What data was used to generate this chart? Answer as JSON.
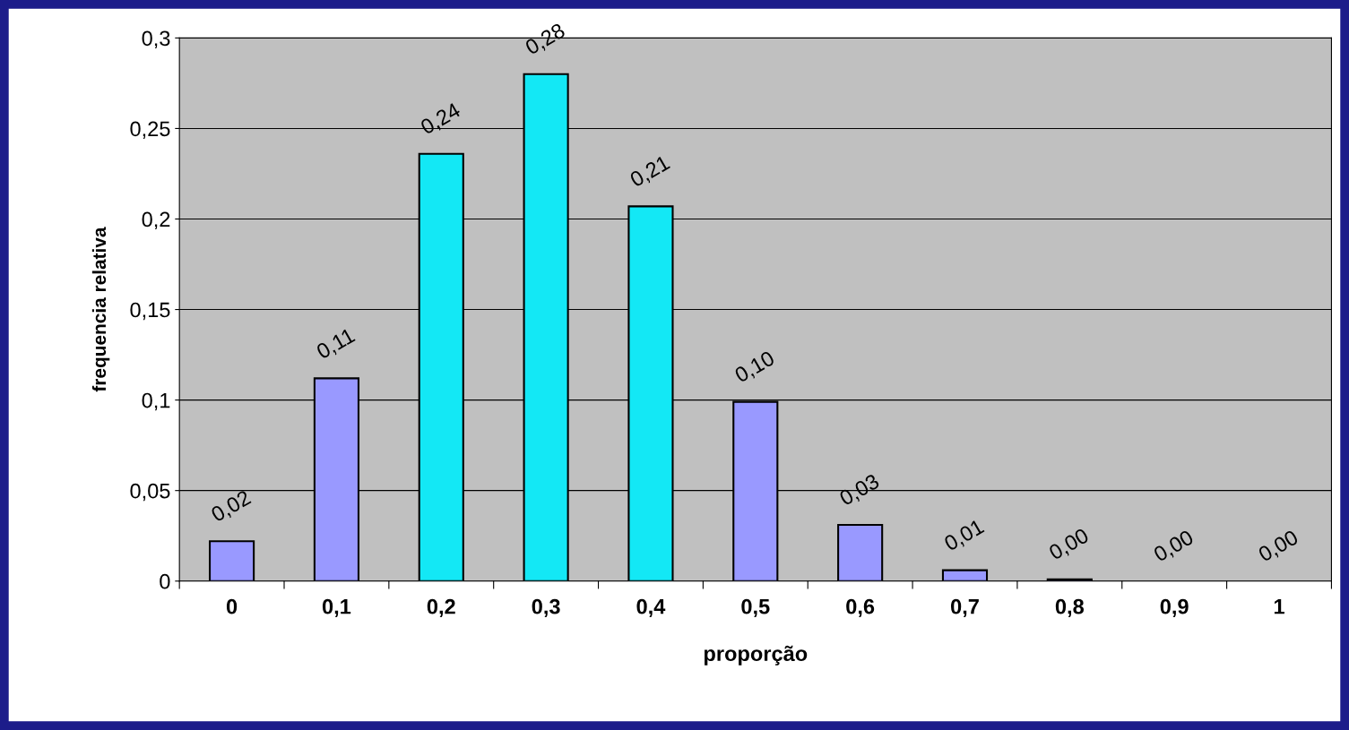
{
  "chart_data": {
    "type": "bar",
    "xlabel": "proporção",
    "ylabel": "frequencia relativa",
    "categories": [
      "0",
      "0,1",
      "0,2",
      "0,3",
      "0,4",
      "0,5",
      "0,6",
      "0,7",
      "0,8",
      "0,9",
      "1"
    ],
    "values": [
      0.022,
      0.112,
      0.236,
      0.28,
      0.207,
      0.099,
      0.031,
      0.006,
      0.001,
      0,
      0
    ],
    "colors": [
      "#9999ff",
      "#9999ff",
      "#13e8f5",
      "#13e8f5",
      "#13e8f5",
      "#9999ff",
      "#9999ff",
      "#9999ff",
      "#9999ff",
      "#9999ff",
      "#9999ff"
    ],
    "value_labels": [
      "0,02",
      "0,11",
      "0,24",
      "0,28",
      "0,21",
      "0,10",
      "0,03",
      "0,01",
      "0,00",
      "0,00",
      "0,00"
    ],
    "ylim": [
      0,
      0.3
    ],
    "yticks": [
      {
        "value": 0,
        "label": "0"
      },
      {
        "value": 0.05,
        "label": "0,05"
      },
      {
        "value": 0.1,
        "label": "0,1"
      },
      {
        "value": 0.15,
        "label": "0,15"
      },
      {
        "value": 0.2,
        "label": "0,2"
      },
      {
        "value": 0.25,
        "label": "0,25"
      },
      {
        "value": 0.3,
        "label": "0,3"
      }
    ],
    "grid": "y",
    "legend": false
  }
}
